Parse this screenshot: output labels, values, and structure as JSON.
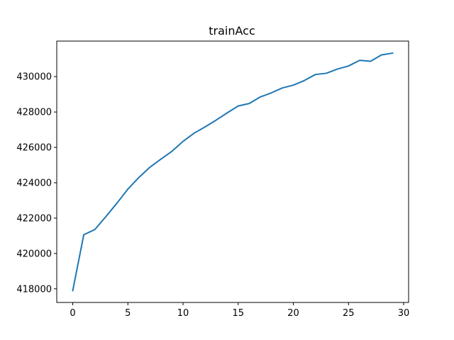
{
  "chart_data": {
    "type": "line",
    "title": "trainAcc",
    "xlabel": "",
    "ylabel": "",
    "xlim": [
      -1.45,
      30.45
    ],
    "ylim": [
      417230,
      432010
    ],
    "xticks": [
      0,
      5,
      10,
      15,
      20,
      25,
      30
    ],
    "yticks": [
      418000,
      420000,
      422000,
      424000,
      426000,
      428000,
      430000
    ],
    "grid": false,
    "legend": "none",
    "x": [
      0,
      1,
      2,
      3,
      4,
      5,
      6,
      7,
      8,
      9,
      10,
      11,
      12,
      13,
      14,
      15,
      16,
      17,
      18,
      19,
      20,
      21,
      22,
      23,
      24,
      25,
      26,
      27,
      28,
      29
    ],
    "series": [
      {
        "color": "#1f77b4",
        "values": [
          417900,
          421060,
          421350,
          422080,
          422840,
          423640,
          424300,
          424880,
          425340,
          425780,
          426340,
          426800,
          427160,
          427540,
          427950,
          428340,
          428480,
          428850,
          429080,
          429360,
          429520,
          429780,
          430120,
          430190,
          430430,
          430600,
          430920,
          430870,
          431230,
          431330
        ]
      }
    ]
  }
}
